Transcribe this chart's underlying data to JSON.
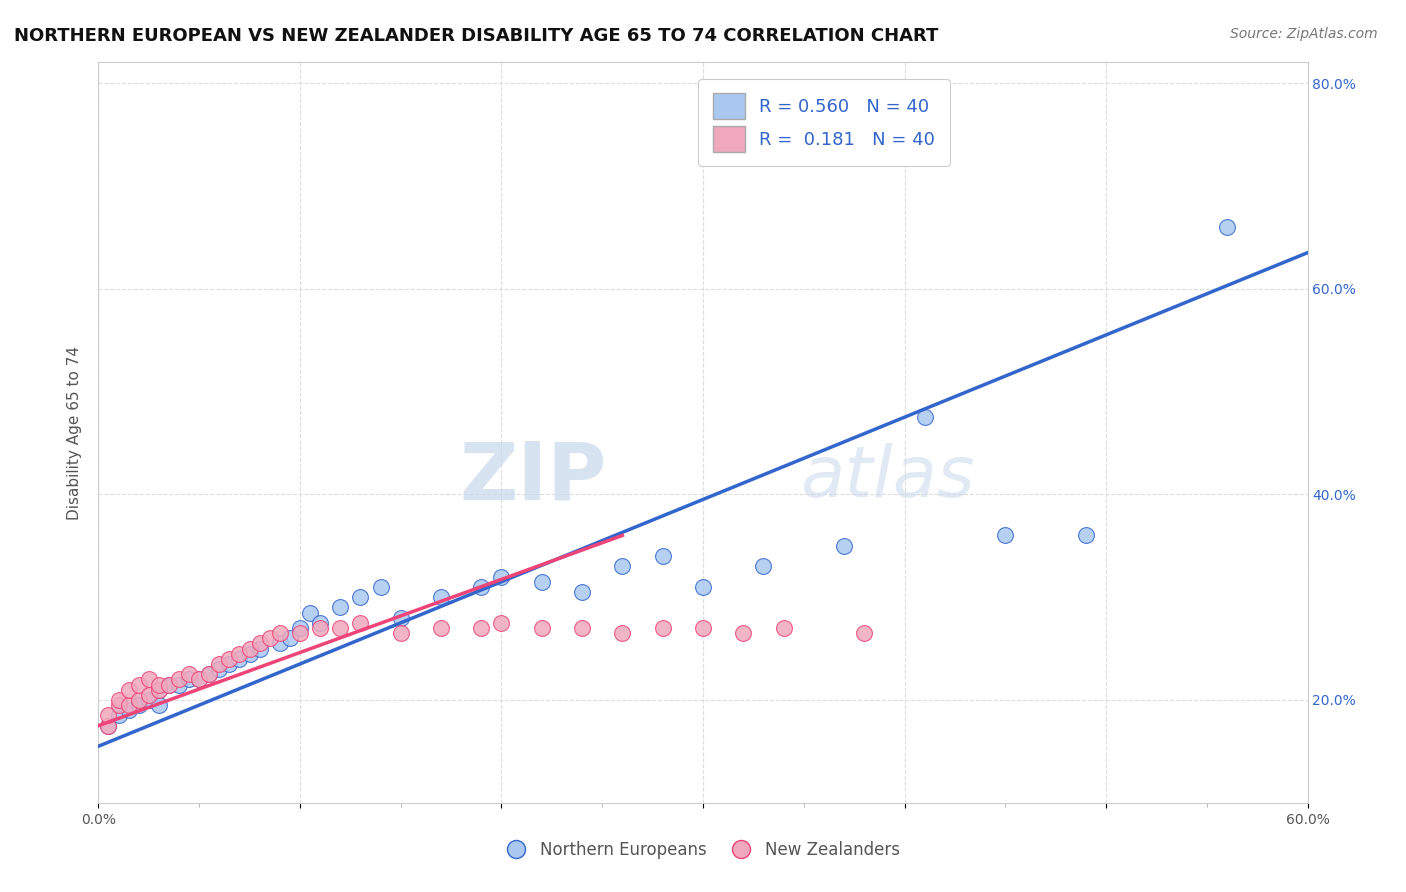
{
  "title": "NORTHERN EUROPEAN VS NEW ZEALANDER DISABILITY AGE 65 TO 74 CORRELATION CHART",
  "source": "Source: ZipAtlas.com",
  "ylabel": "Disability Age 65 to 74",
  "xlim": [
    0.0,
    0.6
  ],
  "ylim": [
    0.1,
    0.82
  ],
  "blue_color": "#aac8f0",
  "pink_color": "#f0a8bc",
  "line_blue": "#3366cc",
  "line_pink": "#ee4477",
  "line_dash_color": "#bbbbcc",
  "watermark": "ZIPatlas",
  "blue_scatter_x": [
    0.005,
    0.01,
    0.015,
    0.02,
    0.025,
    0.03,
    0.03,
    0.035,
    0.04,
    0.045,
    0.05,
    0.055,
    0.06,
    0.065,
    0.07,
    0.075,
    0.08,
    0.09,
    0.095,
    0.1,
    0.105,
    0.11,
    0.12,
    0.13,
    0.14,
    0.15,
    0.17,
    0.19,
    0.2,
    0.22,
    0.24,
    0.26,
    0.28,
    0.3,
    0.33,
    0.37,
    0.41,
    0.45,
    0.49,
    0.56
  ],
  "blue_scatter_y": [
    0.175,
    0.185,
    0.19,
    0.195,
    0.2,
    0.195,
    0.21,
    0.215,
    0.215,
    0.22,
    0.22,
    0.225,
    0.23,
    0.235,
    0.24,
    0.245,
    0.25,
    0.255,
    0.26,
    0.27,
    0.285,
    0.275,
    0.29,
    0.3,
    0.31,
    0.28,
    0.3,
    0.31,
    0.32,
    0.315,
    0.305,
    0.33,
    0.34,
    0.31,
    0.33,
    0.35,
    0.475,
    0.36,
    0.36,
    0.66
  ],
  "pink_scatter_x": [
    0.005,
    0.005,
    0.01,
    0.01,
    0.015,
    0.015,
    0.02,
    0.02,
    0.025,
    0.025,
    0.03,
    0.03,
    0.035,
    0.04,
    0.045,
    0.05,
    0.055,
    0.06,
    0.065,
    0.07,
    0.075,
    0.08,
    0.085,
    0.09,
    0.1,
    0.11,
    0.12,
    0.13,
    0.15,
    0.17,
    0.19,
    0.2,
    0.22,
    0.24,
    0.26,
    0.28,
    0.3,
    0.32,
    0.34,
    0.38
  ],
  "pink_scatter_y": [
    0.175,
    0.185,
    0.195,
    0.2,
    0.195,
    0.21,
    0.2,
    0.215,
    0.205,
    0.22,
    0.21,
    0.215,
    0.215,
    0.22,
    0.225,
    0.22,
    0.225,
    0.235,
    0.24,
    0.245,
    0.25,
    0.255,
    0.26,
    0.265,
    0.265,
    0.27,
    0.27,
    0.275,
    0.265,
    0.27,
    0.27,
    0.275,
    0.27,
    0.27,
    0.265,
    0.27,
    0.27,
    0.265,
    0.27,
    0.265
  ],
  "title_fontsize": 13,
  "axis_fontsize": 11,
  "tick_fontsize": 10,
  "legend_fontsize": 13,
  "source_fontsize": 10,
  "background_color": "#ffffff",
  "grid_color": "#dddddd"
}
